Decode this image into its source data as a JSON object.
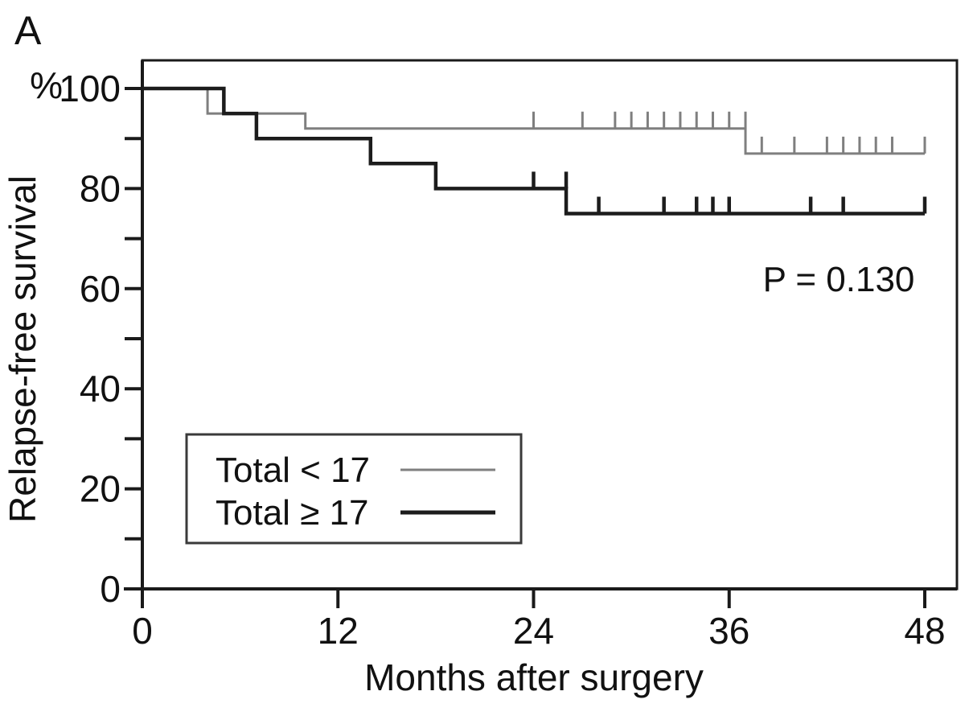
{
  "panel_label": "A",
  "chart_data": {
    "type": "line",
    "subtype": "kaplan-meier-step",
    "title": "",
    "xlabel": "Months after surgery",
    "ylabel": "Relapse-free survival",
    "y_unit": "%",
    "xlim": [
      0,
      48
    ],
    "ylim": [
      0,
      100
    ],
    "x_ticks": [
      0,
      12,
      24,
      36,
      48
    ],
    "y_major_ticks": [
      100,
      80,
      60,
      40,
      20,
      0
    ],
    "y_minor_ticks": [
      90,
      70,
      50,
      30,
      10
    ],
    "grid": false,
    "annotation": "P = 0.130",
    "axis_color": "#1a1a1a",
    "legend_position": "lower-left-inside",
    "legend": [
      {
        "label": "Total < 17",
        "color": "#7f7f7f",
        "width": 3
      },
      {
        "label": "Total ≥ 17",
        "color": "#1c1c1c",
        "width": 5
      }
    ],
    "series": [
      {
        "name": "Total < 17",
        "color": "#7f7f7f",
        "width": 3,
        "steps": [
          [
            0,
            100
          ],
          [
            4,
            95
          ],
          [
            10,
            92
          ],
          [
            37,
            87
          ]
        ],
        "end": 48,
        "censors": [
          [
            24,
            92
          ],
          [
            27,
            92
          ],
          [
            29,
            92
          ],
          [
            30,
            92
          ],
          [
            31,
            92
          ],
          [
            32,
            92
          ],
          [
            33,
            92
          ],
          [
            34,
            92
          ],
          [
            35,
            92
          ],
          [
            36,
            92
          ],
          [
            37,
            92
          ],
          [
            38,
            87
          ],
          [
            40,
            87
          ],
          [
            42,
            87
          ],
          [
            43,
            87
          ],
          [
            44,
            87
          ],
          [
            45,
            87
          ],
          [
            46,
            87
          ],
          [
            48,
            87
          ]
        ]
      },
      {
        "name": "Total ≥ 17",
        "color": "#1c1c1c",
        "width": 4.5,
        "steps": [
          [
            0,
            100
          ],
          [
            5,
            95
          ],
          [
            7,
            90
          ],
          [
            14,
            85
          ],
          [
            18,
            80
          ],
          [
            26,
            75
          ]
        ],
        "end": 48,
        "censors": [
          [
            24,
            80
          ],
          [
            26,
            80
          ],
          [
            28,
            75
          ],
          [
            32,
            75
          ],
          [
            34,
            75
          ],
          [
            35,
            75
          ],
          [
            36,
            75
          ],
          [
            41,
            75
          ],
          [
            43,
            75
          ],
          [
            48,
            75
          ]
        ]
      }
    ]
  }
}
